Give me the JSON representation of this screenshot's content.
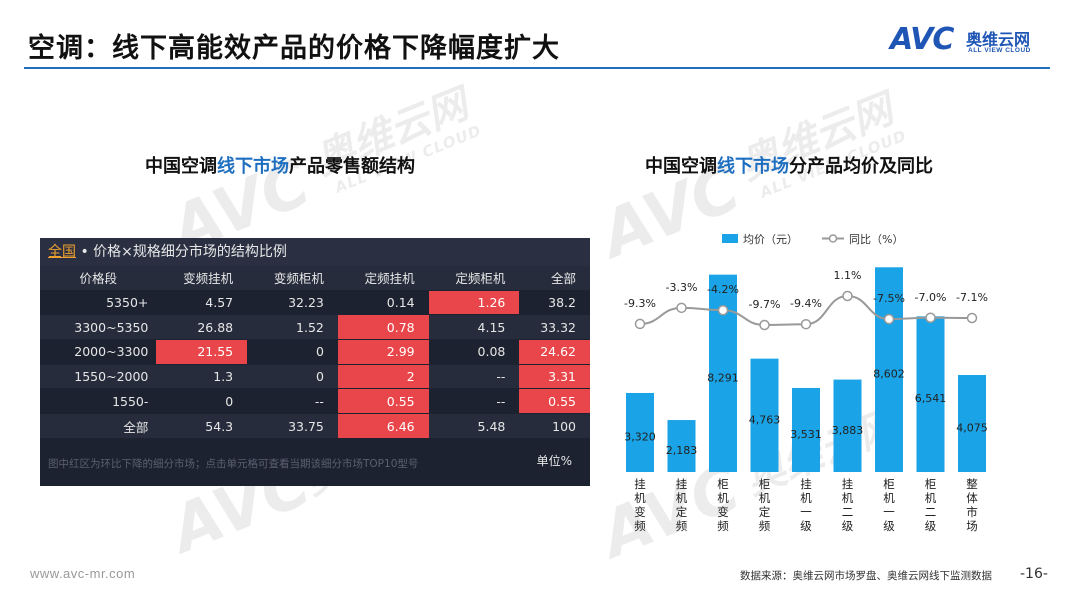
{
  "slide": {
    "title": "空调：线下高能效产品的价格下降幅度扩大",
    "logo_text": "AVC",
    "logo_cn": "奥维云网",
    "logo_en": "ALL VIEW CLOUD",
    "footer_url": "www.avc-mr.com",
    "footer_source": "数据来源：奥维云网市场罗盘、奥维云网线下监测数据",
    "page_number": "-16-",
    "colors": {
      "accent": "#1f6fc0",
      "bar": "#1aa3e6",
      "line": "#999999",
      "highlight": "#e8464a",
      "panel_bg": "#1d2230"
    }
  },
  "left": {
    "title_pre": "中国空调",
    "title_hl": "线下市场",
    "title_post": "产品零售额结构",
    "panel_scope": "全国",
    "panel_title": " • 价格×规格细分市场的结构比例",
    "headers": [
      "价格段",
      "变频挂机",
      "变频柜机",
      "定频挂机",
      "定频柜机",
      "全部"
    ],
    "rows": [
      [
        "5350+",
        "4.57",
        "32.23",
        "0.14",
        "1.26",
        "38.2"
      ],
      [
        "3300~5350",
        "26.88",
        "1.52",
        "0.78",
        "4.15",
        "33.32"
      ],
      [
        "2000~3300",
        "21.55",
        "0",
        "2.99",
        "0.08",
        "24.62"
      ],
      [
        "1550~2000",
        "1.3",
        "0",
        "2",
        "--",
        "3.31"
      ],
      [
        "1550-",
        "0",
        "--",
        "0.55",
        "--",
        "0.55"
      ],
      [
        "全部",
        "54.3",
        "33.75",
        "6.46",
        "5.48",
        "100"
      ]
    ],
    "red_cells": [
      [
        0,
        4
      ],
      [
        1,
        3
      ],
      [
        2,
        1
      ],
      [
        2,
        3
      ],
      [
        2,
        5
      ],
      [
        3,
        3
      ],
      [
        3,
        5
      ],
      [
        4,
        3
      ],
      [
        4,
        5
      ],
      [
        5,
        3
      ]
    ],
    "note": "图中红区为环比下降的细分市场；点击单元格可查看当期该细分市场TOP10型号",
    "unit": "单位%"
  },
  "right": {
    "title_pre": "中国空调",
    "title_hl": "线下市场",
    "title_post": "分产品均价及同比"
  },
  "chart_data": {
    "type": "bar",
    "categories": [
      "挂机变频",
      "挂机定频",
      "柜机变频",
      "柜机定频",
      "挂机一级",
      "挂机二级",
      "柜机一级",
      "柜机二级",
      "整体市场"
    ],
    "series": [
      {
        "name": "均价（元）",
        "type": "bar",
        "values": [
          3320,
          2183,
          8291,
          4763,
          3531,
          3883,
          8602,
          6541,
          4075
        ],
        "labels": [
          "3,320",
          "2,183",
          "8,291",
          "4,763",
          "3,531",
          "3,883",
          "8,602",
          "6,541",
          "4,075"
        ]
      },
      {
        "name": "同比（%）",
        "type": "line",
        "values": [
          -9.3,
          -3.3,
          -4.2,
          -9.7,
          -9.4,
          1.1,
          -7.5,
          -7.0,
          -7.1
        ],
        "labels": [
          "-9.3%",
          "-3.3%",
          "-4.2%",
          "-9.7%",
          "-9.4%",
          "1.1%",
          "-7.5%",
          "-7.0%",
          "-7.1%"
        ]
      }
    ],
    "legend": "top",
    "grid": false
  }
}
